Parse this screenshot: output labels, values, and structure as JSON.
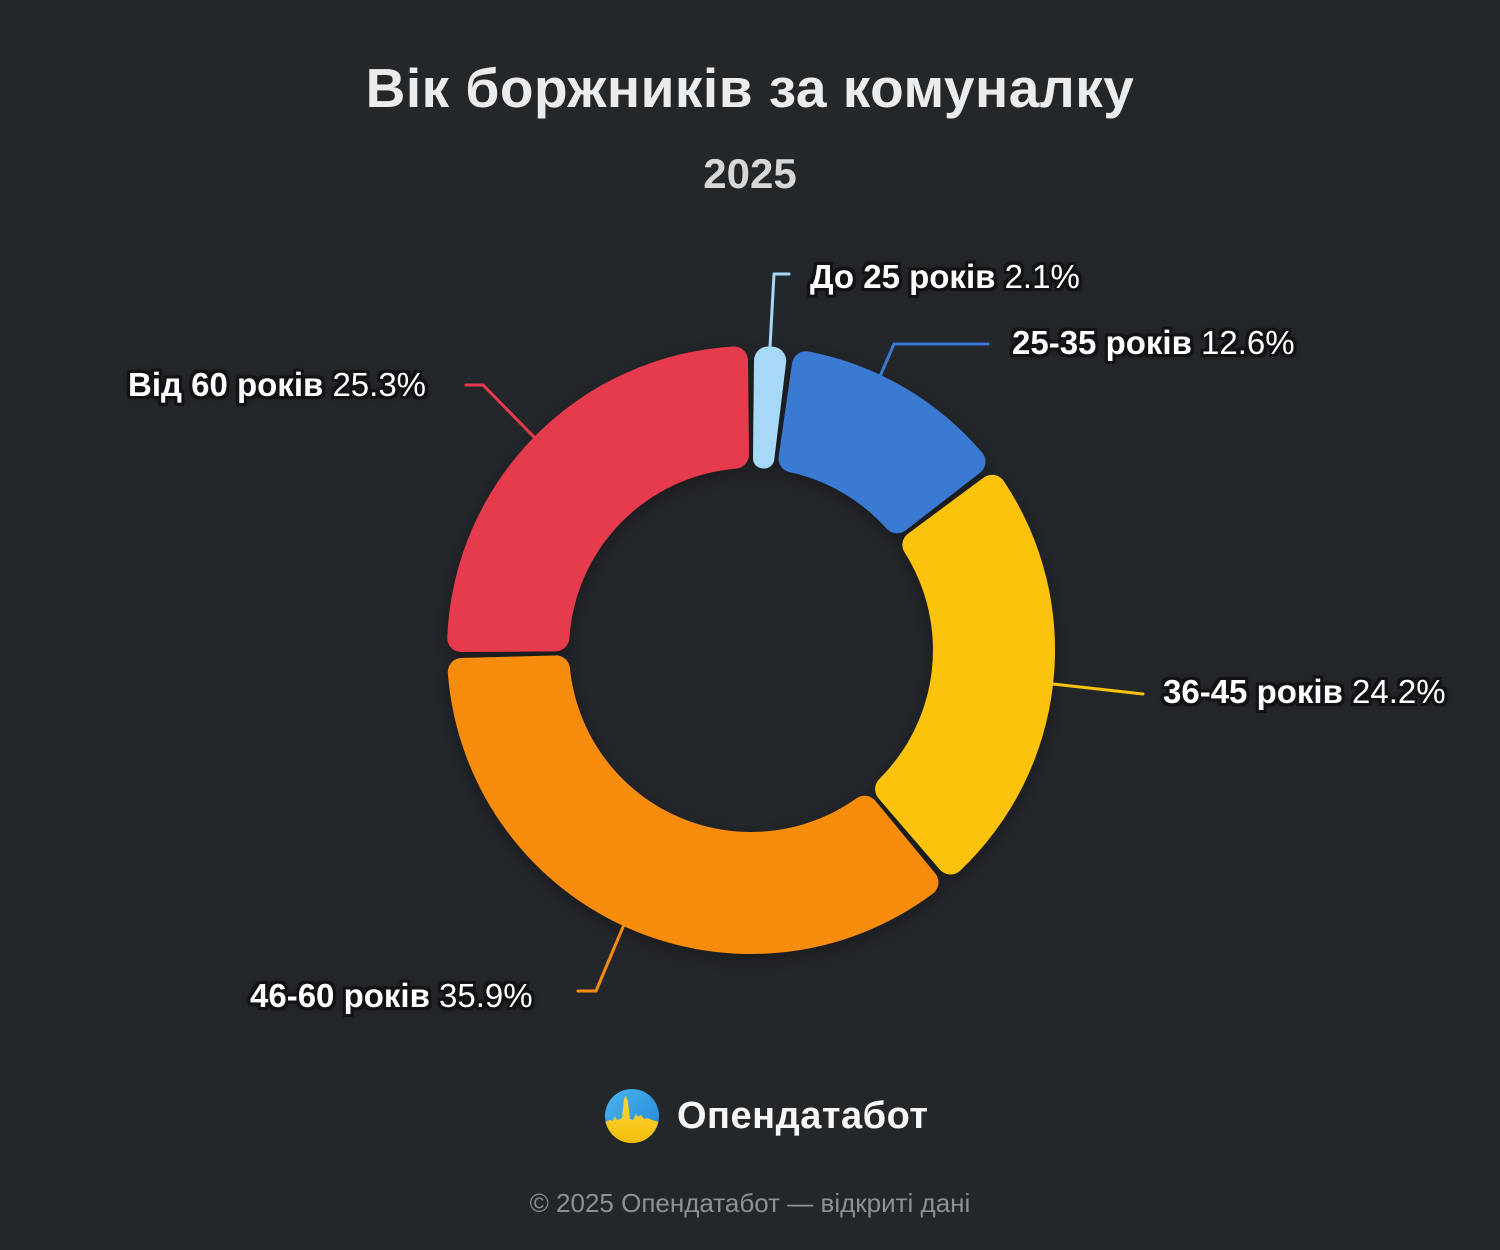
{
  "title": "Вік боржників за комуналку",
  "subtitle": "2025",
  "chart_data": {
    "type": "pie",
    "subtype": "donut",
    "title": "Вік боржників за комуналку",
    "subtitle": "2025",
    "unit": "%",
    "start_angle": "top (12 o'clock)",
    "direction": "clockwise",
    "inner_radius_ratio": 0.6,
    "segments": [
      {
        "label": "До 25 років",
        "value": 2.1,
        "display": "2.1%",
        "color": "#a6d9f7"
      },
      {
        "label": "25-35 років",
        "value": 12.6,
        "display": "12.6%",
        "color": "#3a7ad2"
      },
      {
        "label": "36-45 років",
        "value": 24.2,
        "display": "24.2%",
        "color": "#fcc30d"
      },
      {
        "label": "46-60 років",
        "value": 35.9,
        "display": "35.9%",
        "color": "#f88c0e"
      },
      {
        "label": "Від 60 років",
        "value": 25.3,
        "display": "25.3%",
        "color": "#e63b4e"
      }
    ],
    "legend": "none",
    "grid": false,
    "labels_style": "external callout labels with colored leader lines"
  },
  "branding": {
    "logo_icon": "opendatabot-pulse-icon",
    "logo_text": "Опендатабот",
    "footer": "© 2025 Опендатабот — відкриті дані"
  },
  "colors": {
    "background": "#24272a",
    "title_text": "#ebecee",
    "subtitle_text": "#d5d7d9",
    "label_text": "#ffffff",
    "label_outline": "#111317",
    "footer_text": "#8d9094",
    "logo_blue": "#2f9ce4",
    "logo_yellow": "#fcc918"
  }
}
